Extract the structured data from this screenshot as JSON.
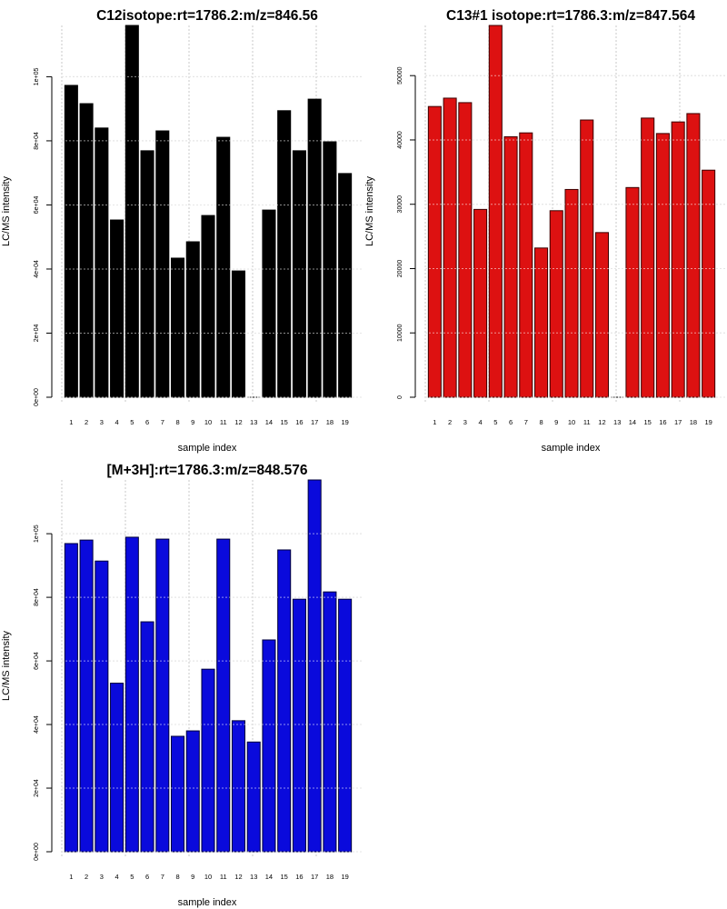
{
  "chart_data": [
    {
      "type": "bar",
      "title": "C12isotope:rt=1786.2:m/z=846.56",
      "xlabel": "sample index",
      "ylabel": "LC/MS intensity",
      "categories": [
        "1",
        "2",
        "3",
        "4",
        "5",
        "6",
        "7",
        "8",
        "9",
        "10",
        "11",
        "12",
        "13",
        "14",
        "15",
        "16",
        "17",
        "18",
        "19"
      ],
      "values": [
        97300,
        91600,
        84000,
        55300,
        116000,
        76900,
        83100,
        43400,
        48500,
        56700,
        81100,
        39400,
        0,
        58400,
        89400,
        76900,
        93000,
        79700,
        69800
      ],
      "yticks": [
        0,
        20000,
        40000,
        60000,
        80000,
        100000
      ],
      "ytick_labels": [
        "0e+00",
        "2e+04",
        "4e+04",
        "6e+04",
        "8e+04",
        "1e+05"
      ],
      "ylim": [
        0,
        116000
      ],
      "grid": true,
      "color": "#000000",
      "border": "#000000"
    },
    {
      "type": "bar",
      "title": "C13#1 isotope:rt=1786.3:m/z=847.564",
      "xlabel": "sample index",
      "ylabel": "LC/MS intensity",
      "categories": [
        "1",
        "2",
        "3",
        "4",
        "5",
        "6",
        "7",
        "8",
        "9",
        "10",
        "11",
        "12",
        "13",
        "14",
        "15",
        "16",
        "17",
        "18",
        "19"
      ],
      "values": [
        45200,
        46500,
        45800,
        29200,
        57800,
        40500,
        41100,
        23200,
        29000,
        32300,
        43100,
        25600,
        0,
        32600,
        43400,
        41000,
        42800,
        44100,
        35300
      ],
      "yticks": [
        0,
        10000,
        20000,
        30000,
        40000,
        50000
      ],
      "ytick_labels": [
        "0",
        "10000",
        "20000",
        "30000",
        "40000",
        "50000"
      ],
      "ylim": [
        0,
        57800
      ],
      "grid": true,
      "color": "#dd1111",
      "border": "#3a0000"
    },
    {
      "type": "bar",
      "title": "[M+3H]:rt=1786.3:m/z=848.576",
      "xlabel": "sample index",
      "ylabel": "LC/MS intensity",
      "categories": [
        "1",
        "2",
        "3",
        "4",
        "5",
        "6",
        "7",
        "8",
        "9",
        "10",
        "11",
        "12",
        "13",
        "14",
        "15",
        "16",
        "17",
        "18",
        "19"
      ],
      "values": [
        96900,
        98000,
        91400,
        53000,
        98900,
        72300,
        98300,
        36300,
        38000,
        57400,
        98300,
        41200,
        34500,
        66600,
        94900,
        79400,
        116900,
        81700,
        79400
      ],
      "yticks": [
        0,
        20000,
        40000,
        60000,
        80000,
        100000
      ],
      "ytick_labels": [
        "0e+00",
        "2e+04",
        "4e+04",
        "6e+04",
        "8e+04",
        "1e+05"
      ],
      "ylim": [
        0,
        116900
      ],
      "grid": true,
      "color": "#0a0adc",
      "border": "#00003a"
    }
  ]
}
